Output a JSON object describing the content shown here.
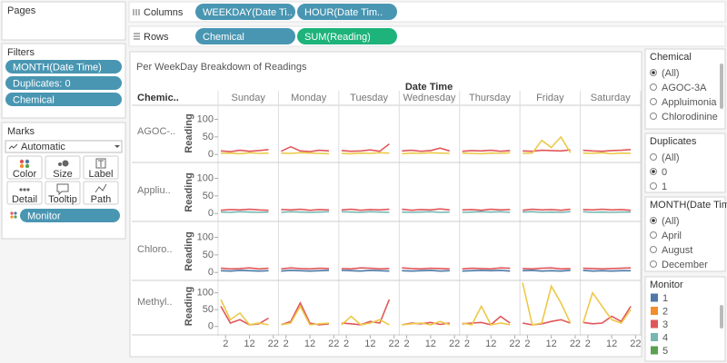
{
  "ui": {
    "pages_title": "Pages",
    "filters_title": "Filters",
    "filters": [
      "MONTH(Date Time)",
      "Duplicates: 0",
      "Chemical"
    ],
    "marks_title": "Marks",
    "mark_type": "Automatic",
    "mark_buttons": [
      "Color",
      "Size",
      "Label",
      "Detail",
      "Tooltip",
      "Path"
    ],
    "marks_pill": "Monitor",
    "columns_label": "Columns",
    "columns": [
      "WEEKDAY(Date Ti..",
      "HOUR(Date Tim.."
    ],
    "rows_label": "Rows",
    "rows": [
      "Chemical",
      "SUM(Reading)"
    ],
    "quick_filters": [
      {
        "title": "Chemical",
        "options": [
          "(All)",
          "AGOC-3A",
          "Appluimonia",
          "Chlorodinine"
        ],
        "selected": 0
      },
      {
        "title": "Duplicates",
        "options": [
          "(All)",
          "0",
          "1"
        ],
        "selected": 1
      },
      {
        "title": "MONTH(Date Time)",
        "options": [
          "(All)",
          "April",
          "August",
          "December"
        ],
        "selected": 0
      }
    ],
    "legend": {
      "title": "Monitor",
      "items": [
        {
          "name": "1",
          "color": "#4e79a7"
        },
        {
          "name": "2",
          "color": "#f28e2b"
        },
        {
          "name": "3",
          "color": "#e15759"
        },
        {
          "name": "4",
          "color": "#76b7b2"
        },
        {
          "name": "5",
          "color": "#59a14f"
        }
      ]
    }
  },
  "chart_data": {
    "type": "line",
    "title": "Per WeekDay Breakdown of Readings",
    "column_header": "Date Time",
    "row_header": "Chemic..",
    "axis_label": "Reading",
    "weekdays": [
      "Sunday",
      "Monday",
      "Tuesday",
      "Wednesday",
      "Thursday",
      "Friday",
      "Saturday"
    ],
    "x": [
      0,
      4,
      8,
      12,
      16,
      20
    ],
    "xlim": [
      0,
      23
    ],
    "xticks": [
      2,
      12,
      22
    ],
    "rows": [
      {
        "label": "AGOC-..",
        "ylim": [
          -15,
          135
        ],
        "yticks": [
          0,
          50,
          100
        ],
        "series": [
          {
            "color": "#e15759",
            "values": [
              [
                10,
                8,
                12,
                9,
                11,
                14
              ],
              [
                9,
                22,
                10,
                8,
                12,
                10
              ],
              [
                11,
                9,
                10,
                13,
                9,
                30
              ],
              [
                10,
                12,
                9,
                11,
                18,
                10
              ],
              [
                9,
                11,
                10,
                12,
                9,
                11
              ],
              [
                10,
                9,
                12,
                11,
                10,
                13
              ],
              [
                12,
                10,
                9,
                11,
                12,
                14
              ]
            ]
          },
          {
            "color": "#edc948",
            "values": [
              [
                3,
                4,
                2,
                5,
                3,
                4
              ],
              [
                4,
                3,
                5,
                4,
                3,
                2
              ],
              [
                3,
                2,
                4,
                3,
                5,
                4
              ],
              [
                2,
                4,
                3,
                5,
                4,
                3
              ],
              [
                4,
                3,
                2,
                4,
                3,
                5
              ],
              [
                3,
                4,
                40,
                20,
                50,
                5
              ],
              [
                4,
                3,
                5,
                2,
                4,
                3
              ]
            ]
          }
        ]
      },
      {
        "label": "Appliu..",
        "ylim": [
          -15,
          135
        ],
        "yticks": [
          0,
          50,
          100
        ],
        "series": [
          {
            "color": "#e15759",
            "values": [
              [
                9,
                11,
                10,
                12,
                10,
                9
              ],
              [
                11,
                10,
                12,
                9,
                11,
                10
              ],
              [
                10,
                12,
                9,
                11,
                10,
                12
              ],
              [
                12,
                9,
                11,
                10,
                13,
                10
              ],
              [
                10,
                11,
                9,
                12,
                10,
                11
              ],
              [
                9,
                12,
                10,
                11,
                9,
                12
              ],
              [
                11,
                10,
                12,
                10,
                11,
                9
              ]
            ]
          },
          {
            "color": "#76b7b2",
            "values": [
              [
                4,
                3,
                5,
                4,
                3,
                4
              ],
              [
                3,
                5,
                4,
                3,
                4,
                5
              ],
              [
                5,
                4,
                3,
                5,
                4,
                3
              ],
              [
                4,
                3,
                4,
                5,
                3,
                4
              ],
              [
                3,
                4,
                5,
                4,
                5,
                3
              ],
              [
                4,
                5,
                3,
                4,
                3,
                5
              ],
              [
                5,
                3,
                4,
                3,
                4,
                4
              ]
            ]
          }
        ]
      },
      {
        "label": "Chloro..",
        "ylim": [
          -15,
          135
        ],
        "yticks": [
          0,
          50,
          100
        ],
        "series": [
          {
            "color": "#e15759",
            "values": [
              [
                12,
                10,
                11,
                13,
                10,
                12
              ],
              [
                10,
                13,
                11,
                10,
                12,
                11
              ],
              [
                11,
                10,
                13,
                12,
                10,
                11
              ],
              [
                13,
                11,
                10,
                12,
                11,
                10
              ],
              [
                10,
                12,
                11,
                10,
                13,
                12
              ],
              [
                11,
                10,
                12,
                13,
                10,
                11
              ],
              [
                12,
                11,
                10,
                11,
                12,
                13
              ]
            ]
          },
          {
            "color": "#4e79a7",
            "values": [
              [
                5,
                4,
                6,
                5,
                4,
                5
              ],
              [
                4,
                6,
                5,
                4,
                5,
                6
              ],
              [
                6,
                5,
                4,
                6,
                5,
                4
              ],
              [
                5,
                4,
                5,
                6,
                4,
                5
              ],
              [
                4,
                5,
                6,
                5,
                6,
                4
              ],
              [
                5,
                6,
                4,
                5,
                4,
                6
              ],
              [
                6,
                4,
                5,
                4,
                5,
                5
              ]
            ]
          }
        ]
      },
      {
        "label": "Methyl..",
        "ylim": [
          -25,
          145
        ],
        "yticks": [
          0,
          50,
          100
        ],
        "series": [
          {
            "color": "#e15759",
            "values": [
              [
                60,
                10,
                20,
                5,
                8,
                25
              ],
              [
                5,
                15,
                70,
                10,
                5,
                8
              ],
              [
                10,
                8,
                5,
                15,
                10,
                80
              ],
              [
                5,
                10,
                8,
                12,
                6,
                10
              ],
              [
                8,
                10,
                12,
                5,
                30,
                10
              ],
              [
                10,
                5,
                8,
                15,
                20,
                10
              ],
              [
                12,
                8,
                10,
                30,
                15,
                60
              ]
            ]
          },
          {
            "color": "#edc948",
            "values": [
              [
                80,
                20,
                40,
                5,
                10,
                5
              ],
              [
                5,
                10,
                60,
                5,
                8,
                10
              ],
              [
                5,
                30,
                5,
                10,
                20,
                5
              ],
              [
                5,
                8,
                10,
                5,
                15,
                5
              ],
              [
                10,
                5,
                60,
                5,
                10,
                5
              ],
              [
                130,
                5,
                10,
                120,
                70,
                10
              ],
              [
                10,
                100,
                60,
                20,
                10,
                50
              ]
            ]
          }
        ]
      }
    ]
  }
}
